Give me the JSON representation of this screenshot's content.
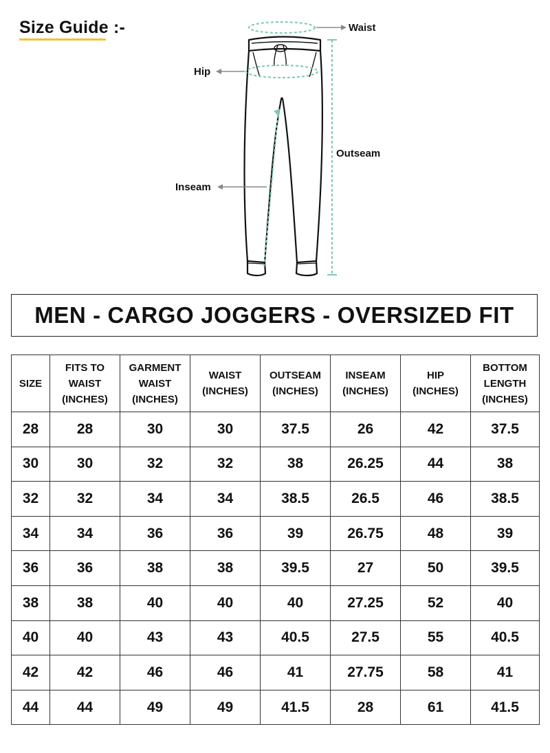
{
  "guide": {
    "title": "Size Guide :-"
  },
  "diagram": {
    "labels": {
      "waist": "Waist",
      "hip": "Hip",
      "outseam": "Outseam",
      "inseam": "Inseam"
    },
    "colors": {
      "measure": "#7cc9b0",
      "outline": "#111111",
      "arrow": "#888888"
    }
  },
  "banner": {
    "title": "MEN - CARGO JOGGERS - OVERSIZED FIT"
  },
  "table": {
    "headers": [
      [
        "SIZE"
      ],
      [
        "FITS TO",
        "WAIST",
        "(INCHES)"
      ],
      [
        "GARMENT",
        "WAIST",
        "(INCHES)"
      ],
      [
        "WAIST",
        "(INCHES)"
      ],
      [
        "OUTSEAM",
        "(INCHES)"
      ],
      [
        "INSEAM",
        "(INCHES)"
      ],
      [
        "HIP",
        "(INCHES)"
      ],
      [
        "BOTTOM",
        "LENGTH",
        "(INCHES)"
      ]
    ],
    "rows": [
      [
        "28",
        "28",
        "30",
        "30",
        "37.5",
        "26",
        "42",
        "37.5"
      ],
      [
        "30",
        "30",
        "32",
        "32",
        "38",
        "26.25",
        "44",
        "38"
      ],
      [
        "32",
        "32",
        "34",
        "34",
        "38.5",
        "26.5",
        "46",
        "38.5"
      ],
      [
        "34",
        "34",
        "36",
        "36",
        "39",
        "26.75",
        "48",
        "39"
      ],
      [
        "36",
        "36",
        "38",
        "38",
        "39.5",
        "27",
        "50",
        "39.5"
      ],
      [
        "38",
        "38",
        "40",
        "40",
        "40",
        "27.25",
        "52",
        "40"
      ],
      [
        "40",
        "40",
        "43",
        "43",
        "40.5",
        "27.5",
        "55",
        "40.5"
      ],
      [
        "42",
        "42",
        "46",
        "46",
        "41",
        "27.75",
        "58",
        "41"
      ],
      [
        "44",
        "44",
        "49",
        "49",
        "41.5",
        "28",
        "61",
        "41.5"
      ]
    ]
  }
}
